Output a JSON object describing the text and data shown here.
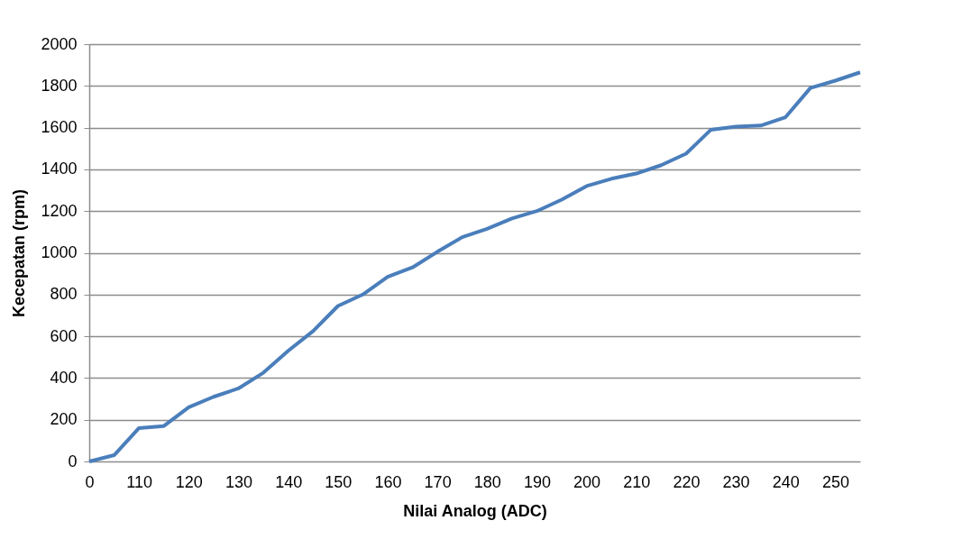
{
  "chart_data": {
    "type": "line",
    "xlabel": "Nilai Analog (ADC)",
    "ylabel": "Kecepatan (rpm)",
    "categories": [
      "0",
      null,
      "110",
      null,
      "120",
      null,
      "130",
      null,
      "140",
      null,
      "150",
      null,
      "160",
      null,
      "170",
      null,
      "180",
      null,
      "190",
      null,
      "200",
      null,
      "210",
      null,
      "220",
      null,
      "230",
      null,
      "240",
      null,
      "250",
      null
    ],
    "series": [
      {
        "color": "#4a7ebb",
        "values": [
          0,
          30,
          160,
          170,
          260,
          310,
          350,
          425,
          530,
          625,
          745,
          800,
          885,
          930,
          1005,
          1075,
          1115,
          1165,
          1200,
          1255,
          1320,
          1355,
          1380,
          1420,
          1475,
          1590,
          1605,
          1610,
          1650,
          1790,
          1825,
          1865
        ]
      }
    ],
    "ylim": [
      0,
      2000
    ],
    "yticks": [
      0,
      200,
      400,
      600,
      800,
      1000,
      1200,
      1400,
      1600,
      1800,
      2000
    ],
    "grid": "y",
    "legend": false,
    "marker": "none",
    "line_style": "solid"
  }
}
